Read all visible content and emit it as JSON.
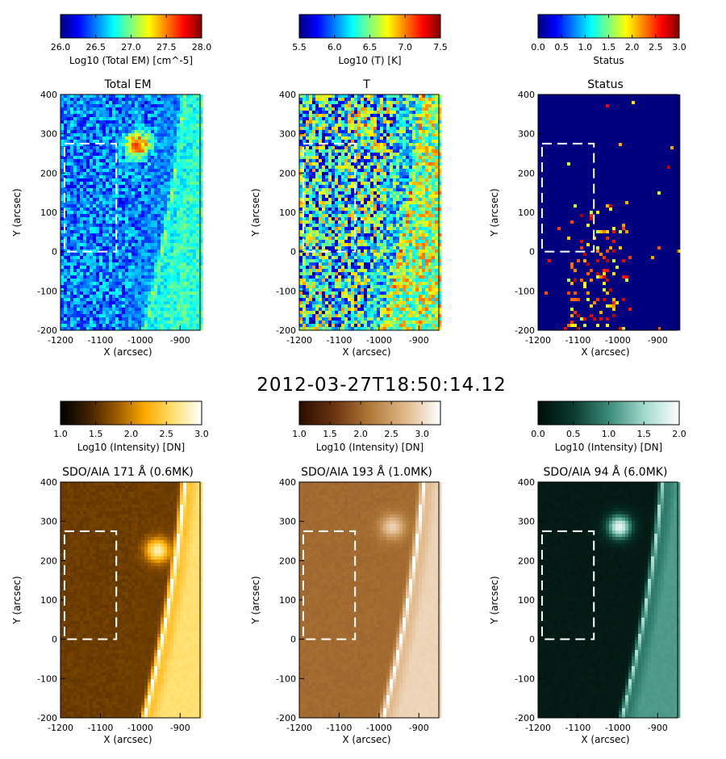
{
  "figure": {
    "timestamp": "2012-03-27T18:50:14.12"
  },
  "colors": {
    "em_colormap": [
      "#00007f",
      "#0000ff",
      "#007fff",
      "#00ffff",
      "#7fff7f",
      "#ffff00",
      "#ff7f00",
      "#ff0000",
      "#7f0000"
    ],
    "temp_colormap": [
      "#00007f",
      "#0000ff",
      "#007fff",
      "#00ffff",
      "#7fff7f",
      "#ffff00",
      "#ff7f00",
      "#ff0000",
      "#7f0000"
    ],
    "status_colormap": [
      "#00007f",
      "#0000ff",
      "#007fff",
      "#00ffff",
      "#7fff7f",
      "#ffff00",
      "#ff7f00",
      "#ff0000",
      "#7f0000"
    ],
    "aia171_colormap": [
      "#000000",
      "#402000",
      "#9a5a00",
      "#ffaa00",
      "#ffe070",
      "#ffffff"
    ],
    "aia193_colormap": [
      "#2a0c00",
      "#6b3410",
      "#b07838",
      "#e0b888",
      "#ffffff"
    ],
    "aia94_colormap": [
      "#000c08",
      "#0a3a2e",
      "#3a8a7a",
      "#a0d8cc",
      "#ffffff"
    ],
    "box": "#ffffff"
  },
  "chart_data": [
    {
      "type": "heatmap",
      "title": "Total EM",
      "xlabel": "X (arcsec)",
      "ylabel": "Y (arcsec)",
      "xlim": [
        -1200,
        -850
      ],
      "ylim": [
        -200,
        400
      ],
      "xticks": [
        "-1200",
        "-1100",
        "-1000",
        "-900"
      ],
      "yticks": [
        "-200",
        "-100",
        "0",
        "100",
        "200",
        "300",
        "400"
      ],
      "colorbar": {
        "label": "Log10 (Total EM) [cm^-5]",
        "range": [
          26.0,
          28.0
        ],
        "ticks": [
          "26.0",
          "26.5",
          "27.0",
          "27.5",
          "28.0"
        ],
        "colormap": "em_colormap"
      },
      "box": {
        "x": [
          -1190,
          -1060
        ],
        "y": [
          0,
          275
        ]
      },
      "base_level": 0.25,
      "limb_level": 0.42,
      "bright_spot": {
        "x": -1010,
        "y": 275,
        "level": 0.85
      },
      "noise": 0.35
    },
    {
      "type": "heatmap",
      "title": "T",
      "xlabel": "X (arcsec)",
      "ylabel": "Y (arcsec)",
      "xlim": [
        -1200,
        -850
      ],
      "ylim": [
        -200,
        400
      ],
      "xticks": [
        "-1200",
        "-1100",
        "-1000",
        "-900"
      ],
      "yticks": [
        "-200",
        "-100",
        "0",
        "100",
        "200",
        "300",
        "400"
      ],
      "colorbar": {
        "label": "Log10 (T) [K]",
        "range": [
          5.5,
          7.5
        ],
        "ticks": [
          "5.5",
          "6.0",
          "6.5",
          "7.0",
          "7.5"
        ],
        "colormap": "temp_colormap"
      },
      "box": {
        "x": [
          -1190,
          -1060
        ],
        "y": [
          0,
          275
        ]
      },
      "base_level": 0.38,
      "limb_level": 0.55,
      "bright_spot": {
        "x": -1040,
        "y": 320,
        "level": 0.55
      },
      "noise": 0.9
    },
    {
      "type": "heatmap",
      "title": "Status",
      "xlabel": "X (arcsec)",
      "ylabel": "Y (arcsec)",
      "xlim": [
        -1200,
        -850
      ],
      "ylim": [
        -200,
        400
      ],
      "xticks": [
        "-1200",
        "-1100",
        "-1000",
        "-900"
      ],
      "yticks": [
        "-200",
        "-100",
        "0",
        "100",
        "200",
        "300",
        "400"
      ],
      "colorbar": {
        "label": "Status",
        "range": [
          0.0,
          3.0
        ],
        "ticks": [
          "0.0",
          "0.5",
          "1.0",
          "1.5",
          "2.0",
          "2.5",
          "3.0"
        ],
        "colormap": "status_colormap"
      },
      "box": {
        "x": [
          -1190,
          -1060
        ],
        "y": [
          0,
          275
        ]
      },
      "base_level": 0.0,
      "limb_level": 0.0,
      "bright_spot": null,
      "noise": 0.15
    },
    {
      "type": "heatmap",
      "title": "SDO/AIA 171 Å (0.6MK)",
      "xlabel": "X (arcsec)",
      "ylabel": "Y (arcsec)",
      "xlim": [
        -1200,
        -850
      ],
      "ylim": [
        -200,
        400
      ],
      "xticks": [
        "-1200",
        "-1100",
        "-1000",
        "-900"
      ],
      "yticks": [
        "-200",
        "-100",
        "0",
        "100",
        "200",
        "300",
        "400"
      ],
      "colorbar": {
        "label": "Log10 (Intensity) [DN]",
        "range": [
          1.0,
          3.0
        ],
        "ticks": [
          "1.0",
          "1.5",
          "2.0",
          "2.5",
          "3.0"
        ],
        "colormap": "aia171_colormap"
      },
      "box": {
        "x": [
          -1190,
          -1060
        ],
        "y": [
          0,
          275
        ]
      },
      "base_level": 0.3,
      "limb_level": 0.8,
      "bright_spot": {
        "x": -960,
        "y": 230,
        "level": 0.9
      },
      "noise": 0.06
    },
    {
      "type": "heatmap",
      "title": "SDO/AIA 193 Å (1.0MK)",
      "xlabel": "X (arcsec)",
      "ylabel": "Y (arcsec)",
      "xlim": [
        -1200,
        -850
      ],
      "ylim": [
        -200,
        400
      ],
      "xticks": [
        "-1200",
        "-1100",
        "-1000",
        "-900"
      ],
      "yticks": [
        "-200",
        "-100",
        "0",
        "100",
        "200",
        "300",
        "400"
      ],
      "colorbar": {
        "label": "Log10 (Intensity) [DN]",
        "range": [
          1.0,
          3.3
        ],
        "ticks": [
          "1.0",
          "1.5",
          "2.0",
          "2.5",
          "3.0"
        ],
        "colormap": "aia193_colormap"
      },
      "box": {
        "x": [
          -1190,
          -1060
        ],
        "y": [
          0,
          275
        ]
      },
      "base_level": 0.45,
      "limb_level": 0.85,
      "bright_spot": {
        "x": -970,
        "y": 290,
        "level": 0.85
      },
      "noise": 0.04
    },
    {
      "type": "heatmap",
      "title": "SDO/AIA 94 Å (6.0MK)",
      "xlabel": "X (arcsec)",
      "ylabel": "Y (arcsec)",
      "xlim": [
        -1200,
        -850
      ],
      "ylim": [
        -200,
        400
      ],
      "xticks": [
        "-1200",
        "-1100",
        "-1000",
        "-900"
      ],
      "yticks": [
        "-200",
        "-100",
        "0",
        "100",
        "200",
        "300",
        "400"
      ],
      "colorbar": {
        "label": "Log10 (Intensity) [DN]",
        "range": [
          0.0,
          2.0
        ],
        "ticks": [
          "0.0",
          "0.5",
          "1.0",
          "1.5",
          "2.0"
        ],
        "colormap": "aia94_colormap"
      },
      "box": {
        "x": [
          -1190,
          -1060
        ],
        "y": [
          0,
          275
        ]
      },
      "base_level": 0.08,
      "limb_level": 0.55,
      "bright_spot": {
        "x": -1000,
        "y": 290,
        "level": 0.95
      },
      "noise": 0.04
    }
  ]
}
